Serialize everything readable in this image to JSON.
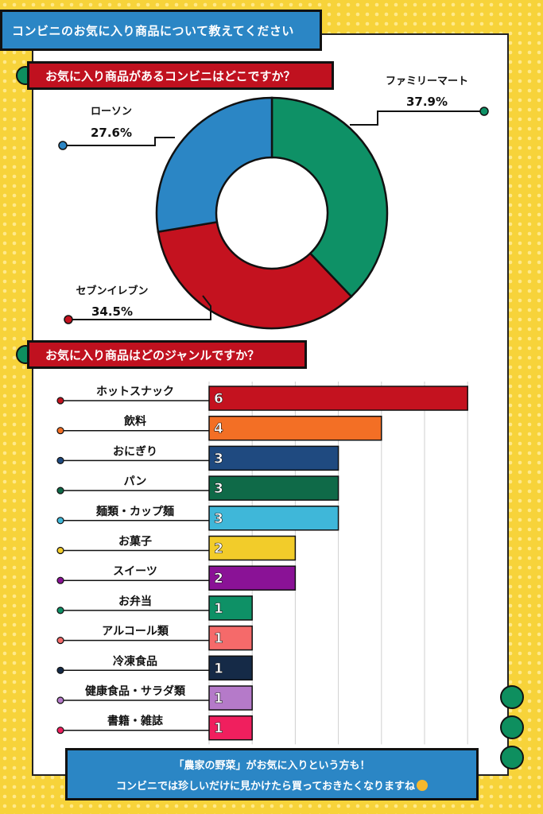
{
  "page_title": "コンビニのお気に入り商品について教えてください",
  "section1_title": "お気に入り商品があるコンビニはどこですか？",
  "section2_title": "お気に入り商品はどのジャンルですか？",
  "footer": {
    "line1": "「農家の野菜」がお気に入りという方も！",
    "line2": "コンビニでは珍しいだけに見かけたら買っておきたくなりますね",
    "emoji_icon": "thinking-face-icon"
  },
  "colors": {
    "accent_blue": "#2b86c5",
    "accent_red": "#c0111f",
    "accent_green": "#0e8f5f",
    "background_yellow": "#f7d33a"
  },
  "chart_data": [
    {
      "type": "pie",
      "variant": "donut",
      "slices": [
        {
          "label": "ファミリーマート",
          "value": 37.9,
          "value_label": "37.9%",
          "color": "#0e9166"
        },
        {
          "label": "セブンイレブン",
          "value": 34.5,
          "value_label": "34.5%",
          "color": "#c4121f"
        },
        {
          "label": "ローソン",
          "value": 27.6,
          "value_label": "27.6%",
          "color": "#2b86c5"
        }
      ]
    },
    {
      "type": "bar",
      "orientation": "horizontal",
      "categories": [
        "ホットスナック",
        "飲料",
        "おにぎり",
        "パン",
        "麺類・カップ麺",
        "お菓子",
        "スイーツ",
        "お弁当",
        "アルコール類",
        "冷凍食品",
        "健康食品・サラダ類",
        "書籍・雑誌"
      ],
      "values": [
        6,
        4,
        3,
        3,
        3,
        2,
        2,
        1,
        1,
        1,
        1,
        1
      ],
      "colors": [
        "#c4121f",
        "#f36f25",
        "#1f4a80",
        "#0f6a48",
        "#3fb7d9",
        "#f2cc2a",
        "#8a1296",
        "#0e9166",
        "#f56a6a",
        "#152a47",
        "#b57ac9",
        "#f01f5e"
      ],
      "xlim": [
        0,
        6
      ],
      "grid": true
    }
  ]
}
